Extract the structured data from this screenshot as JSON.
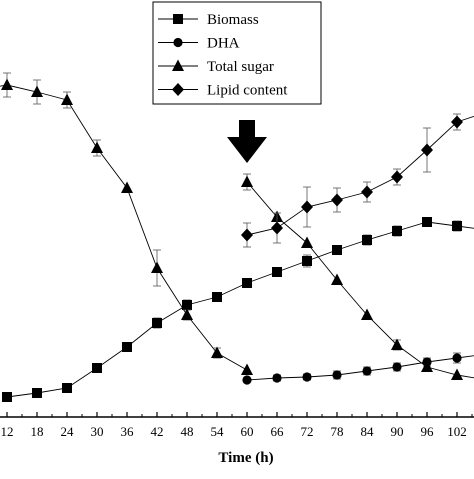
{
  "chart_data": {
    "type": "line",
    "title": "",
    "xlabel": "Time (h)",
    "ylabel": "",
    "x_ticks": [
      12,
      18,
      24,
      30,
      36,
      42,
      48,
      54,
      60,
      66,
      72,
      78,
      84,
      90,
      96,
      102
    ],
    "annotation": {
      "kind": "arrow-down",
      "x": 60
    },
    "legend": {
      "placement": "top-right",
      "entries": [
        {
          "label": "Biomass",
          "marker": "square"
        },
        {
          "label": "DHA",
          "marker": "circle"
        },
        {
          "label": "Total sugar",
          "marker": "triangle"
        },
        {
          "label": "Lipid content",
          "marker": "diamond"
        }
      ]
    },
    "series": [
      {
        "name": "Biomass",
        "marker": "square",
        "x": [
          12,
          18,
          24,
          30,
          36,
          42,
          48,
          54,
          60,
          66,
          72,
          78,
          84,
          90,
          96,
          102,
          108
        ],
        "y": [
          397,
          393,
          388,
          368,
          347,
          323,
          305,
          297,
          283,
          272,
          261,
          250,
          240,
          231,
          222,
          226,
          230
        ],
        "err": [
          0,
          0,
          0,
          0,
          0,
          5,
          5,
          0,
          0,
          0,
          6,
          0,
          5,
          5,
          0,
          5,
          5
        ]
      },
      {
        "name": "DHA",
        "marker": "circle",
        "x": [
          60,
          66,
          72,
          78,
          84,
          90,
          96,
          102,
          108
        ],
        "y": [
          380,
          378,
          377,
          375,
          371,
          367,
          362,
          358,
          354
        ],
        "err": [
          0,
          3,
          3,
          4,
          4,
          4,
          4,
          5,
          5
        ]
      },
      {
        "name": "Total sugar",
        "marker": "triangle",
        "x": [
          6,
          12,
          18,
          24,
          30,
          36,
          42,
          48,
          54,
          60,
          60,
          66,
          72,
          78,
          84,
          90,
          96,
          102,
          108
        ],
        "y": [
          90,
          85,
          92,
          100,
          148,
          188,
          268,
          315,
          353,
          370,
          182,
          217,
          243,
          280,
          315,
          345,
          367,
          375,
          380
        ],
        "err": [
          10,
          12,
          12,
          8,
          8,
          0,
          18,
          5,
          5,
          0,
          8,
          0,
          0,
          0,
          0,
          5,
          0,
          0,
          0
        ]
      },
      {
        "name": "Lipid content",
        "marker": "diamond",
        "x": [
          60,
          66,
          72,
          78,
          84,
          90,
          96,
          102,
          108
        ],
        "y": [
          235,
          228,
          207,
          200,
          192,
          177,
          150,
          122,
          112
        ],
        "err": [
          12,
          15,
          20,
          12,
          10,
          8,
          22,
          8,
          5
        ]
      }
    ]
  }
}
